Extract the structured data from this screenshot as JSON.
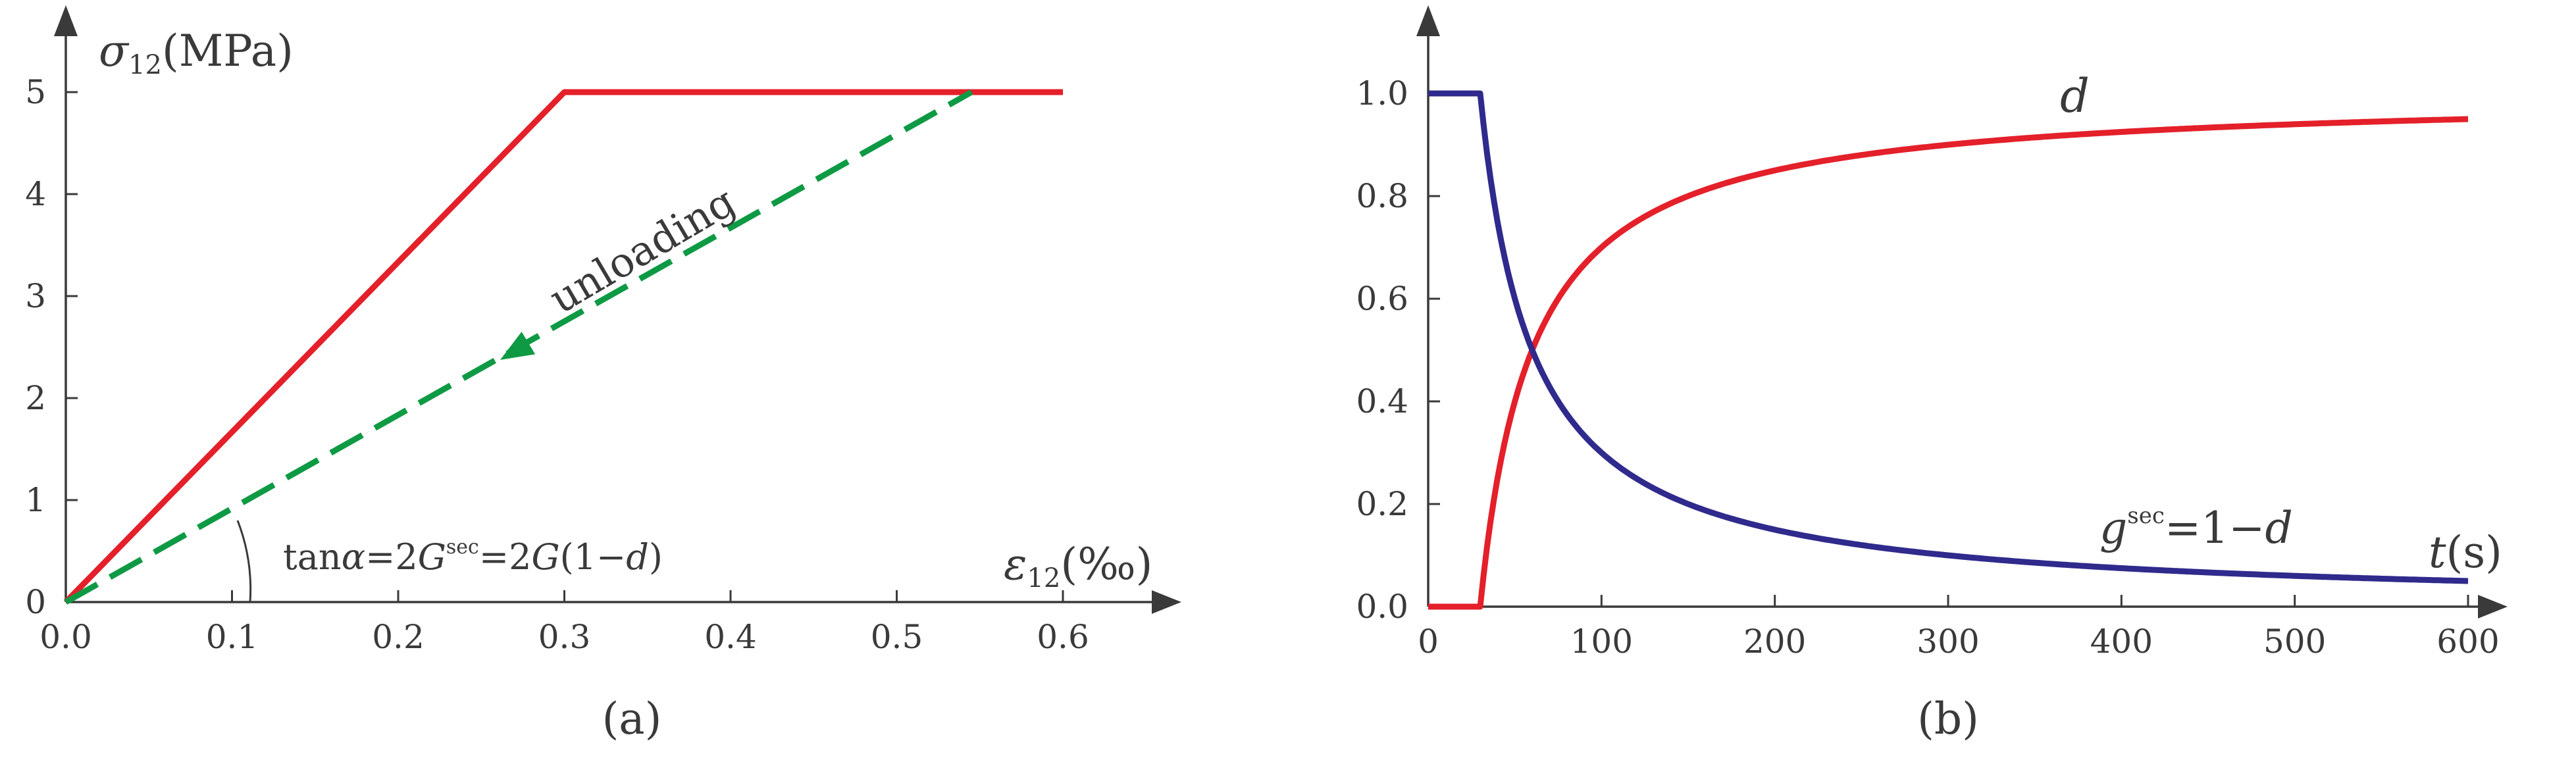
{
  "chart_data": [
    {
      "type": "line",
      "panel_label": "(a)",
      "ylabel": {
        "sym": "σ",
        "sub": "12",
        "unit": "(MPa)"
      },
      "xlabel": {
        "sym": "ε",
        "sub": "12",
        "unit": "(‰)"
      },
      "xlim": [
        0,
        0.6
      ],
      "ylim": [
        0,
        5
      ],
      "xticks": [
        0.0,
        0.1,
        0.2,
        0.3,
        0.4,
        0.5,
        0.6
      ],
      "yticks": [
        0,
        1,
        2,
        3,
        4,
        5
      ],
      "series": [
        {
          "style": "solid",
          "color": "#e4202a",
          "points": [
            [
              0,
              0
            ],
            [
              0.3,
              5
            ],
            [
              0.6,
              5
            ]
          ]
        },
        {
          "style": "dashed",
          "color": "#0e9a44",
          "points": [
            [
              0,
              0
            ],
            [
              0.545,
              5
            ]
          ]
        }
      ],
      "annotations": {
        "unloading": "unloading",
        "formula": {
          "p1": "tan",
          "alpha": "α",
          "p2": "=2",
          "G1": "G",
          "sup": "sec",
          "p3": "=2",
          "G2": "G",
          "p4": "(1−",
          "d": "d",
          "p5": ")"
        }
      }
    },
    {
      "type": "line",
      "panel_label": "(b)",
      "xlabel": {
        "sym": "t",
        "unit": "(s)"
      },
      "xlim": [
        0,
        600
      ],
      "ylim": [
        0,
        1.0
      ],
      "xticks": [
        0,
        100,
        200,
        300,
        400,
        500,
        600
      ],
      "yticks": [
        0.0,
        0.2,
        0.4,
        0.6,
        0.8,
        1.0
      ],
      "ytick_labels": [
        "0.0",
        "0.2",
        "0.4",
        "0.6",
        "0.8",
        "1.0"
      ],
      "series": [
        {
          "name": "d",
          "color": "#e4202a",
          "onset": 30,
          "tau": 30,
          "model": "d"
        },
        {
          "name": "g_sec",
          "color": "#2f2a8c",
          "onset": 30,
          "tau": 30,
          "model": "g"
        }
      ],
      "series_labels": {
        "d": "d",
        "g": {
          "g": "g",
          "sup": "sec",
          "rest": "=1−",
          "d": "d"
        }
      }
    }
  ],
  "colors": {
    "axis": "#3a3a3a",
    "red": "#e4202a",
    "green": "#0e9a44",
    "blue": "#2f2a8c"
  }
}
